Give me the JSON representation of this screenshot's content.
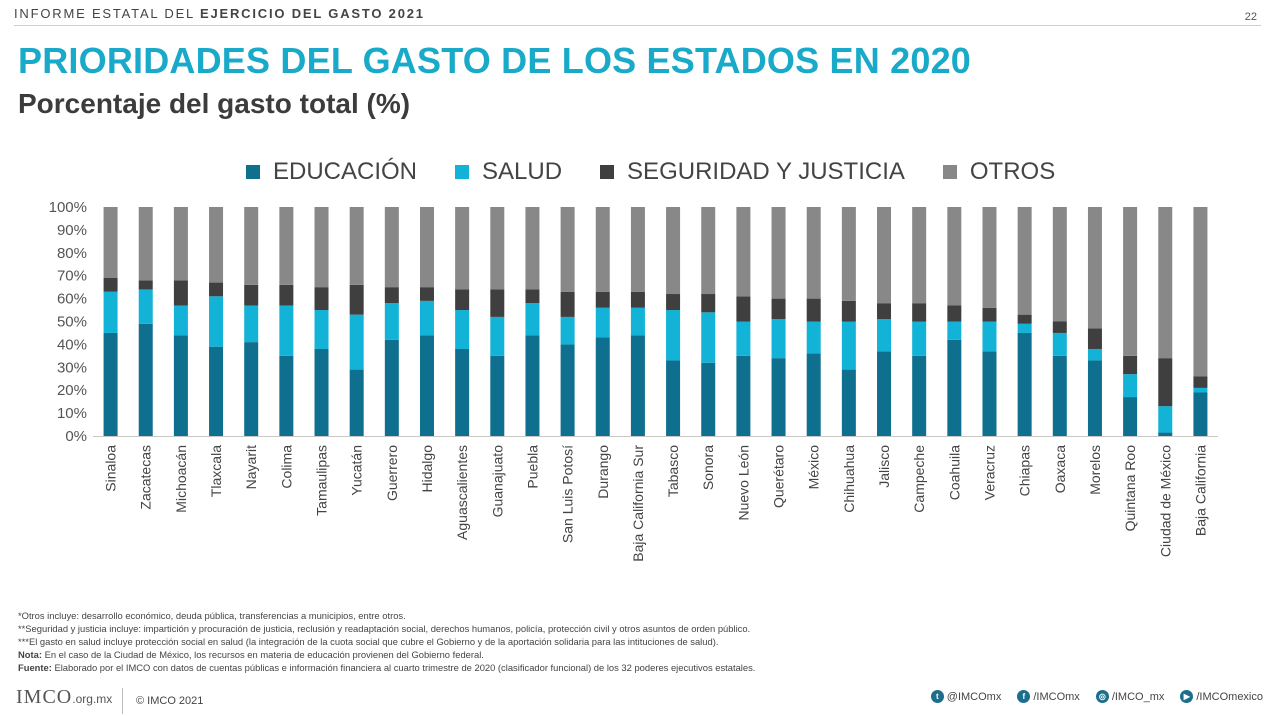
{
  "header": {
    "report_prefix": "I",
    "report_rest": "NFORME ESTATAL DEL ",
    "report_bold": "EJERCICIO DEL GASTO 2021"
  },
  "page_number": "22",
  "title": "PRIORIDADES DEL GASTO DE LOS ESTADOS EN 2020",
  "subtitle": "Porcentaje del gasto total (%)",
  "colors": {
    "educacion": "#0f6f8f",
    "salud": "#12b3d6",
    "seguridad": "#3f3f3f",
    "otros": "#888888"
  },
  "chart_data": {
    "type": "bar",
    "stacked": true,
    "ylim": [
      0,
      100
    ],
    "yticks": [
      "0%",
      "10%",
      "20%",
      "30%",
      "40%",
      "50%",
      "60%",
      "70%",
      "80%",
      "90%",
      "100%"
    ],
    "categories": [
      "Sinaloa",
      "Zacatecas",
      "Michoacán",
      "Tlaxcala",
      "Nayarit",
      "Colima",
      "Tamaulipas",
      "Yucatán",
      "Guerrero",
      "Hidalgo",
      "Aguascalientes",
      "Guanajuato",
      "Puebla",
      "San Luis Potosí",
      "Durango",
      "Baja California Sur",
      "Tabasco",
      "Sonora",
      "Nuevo León",
      "Querétaro",
      "México",
      "Chihuahua",
      "Jalisco",
      "Campeche",
      "Coahuila",
      "Veracruz",
      "Chiapas",
      "Oaxaca",
      "Morelos",
      "Quintana Roo",
      "Ciudad de México",
      "Baja California"
    ],
    "series": [
      {
        "name": "EDUCACIÓN",
        "values": [
          45,
          49,
          44,
          39,
          41,
          35,
          38,
          29,
          42,
          44,
          38,
          35,
          44,
          40,
          43,
          44,
          33,
          32,
          35,
          34,
          36,
          29,
          37,
          35,
          42,
          37,
          45,
          35,
          33,
          17,
          1.5,
          19
        ]
      },
      {
        "name": "SALUD",
        "values": [
          18,
          15,
          13,
          22,
          16,
          22,
          17,
          24,
          16,
          15,
          17,
          17,
          14,
          12,
          13,
          12,
          22,
          22,
          15,
          17,
          14,
          21,
          14,
          15,
          8,
          13,
          4,
          10,
          5,
          10,
          11.5,
          2
        ]
      },
      {
        "name": "SEGURIDAD Y JUSTICIA",
        "values": [
          6,
          4,
          11,
          6,
          9,
          9,
          10,
          13,
          7,
          6,
          9,
          12,
          6,
          11,
          7,
          7,
          7,
          8,
          11,
          9,
          10,
          9,
          7,
          8,
          7,
          6,
          4,
          5,
          9,
          8,
          21,
          5
        ]
      },
      {
        "name": "OTROS",
        "values": [
          31,
          32,
          32,
          33,
          34,
          34,
          35,
          34,
          35,
          35,
          36,
          36,
          36,
          37,
          37,
          37,
          38,
          38,
          39,
          40,
          40,
          41,
          42,
          42,
          43,
          44,
          47,
          50,
          53,
          65,
          66,
          74
        ]
      }
    ]
  },
  "notes": [
    {
      "label": "",
      "text": "*Otros incluye: desarrollo económico, deuda pública, transferencias a municipios, entre otros."
    },
    {
      "label": "",
      "text": "**Seguridad y justicia incluye: impartición y procuración de justicia, reclusión y readaptación social, derechos humanos, policía, protección civil y otros asuntos de orden público."
    },
    {
      "label": "",
      "text": "***El gasto en salud incluye protección social en salud (la integración de la cuota social que cubre el Gobierno y de la aportación solidaria para las intituciones de salud)."
    },
    {
      "label": "Nota:",
      "text": " En el caso de la Ciudad de México, los recursos en materia de educación provienen del Gobierno federal."
    },
    {
      "label": "Fuente:",
      "text": " Elaborado por el IMCO con datos de cuentas públicas e información financiera al cuarto trimestre de 2020 (clasificador funcional) de los 32 poderes ejecutivos estatales."
    }
  ],
  "footer": {
    "logo": "IMCO",
    "logo_domain": ".org.mx",
    "copyright": "© IMCO 2021",
    "socials": [
      {
        "icon": "twitter-icon",
        "glyph": "t",
        "handle": "@IMCOmx"
      },
      {
        "icon": "facebook-icon",
        "glyph": "f",
        "handle": "/IMCOmx"
      },
      {
        "icon": "instagram-icon",
        "glyph": "◎",
        "handle": "/IMCO_mx"
      },
      {
        "icon": "youtube-icon",
        "glyph": "▶",
        "handle": "/IMCOmexico"
      }
    ]
  }
}
